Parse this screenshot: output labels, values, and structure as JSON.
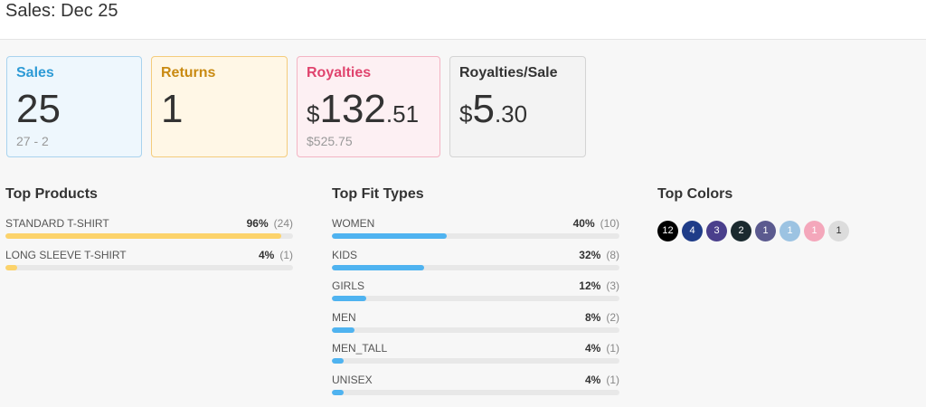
{
  "header": {
    "title": "Sales: Dec 25"
  },
  "cards": {
    "sales": {
      "label": "Sales",
      "value": "25",
      "sub": "27 - 2"
    },
    "returns": {
      "label": "Returns",
      "value": "1"
    },
    "royalties": {
      "label": "Royalties",
      "currency": "$",
      "whole": "132",
      "cents": ".51",
      "sub": "$525.75"
    },
    "royalties_per_sale": {
      "label": "Royalties/Sale",
      "currency": "$",
      "whole": "5",
      "cents": ".30"
    }
  },
  "top_products": {
    "title": "Top Products",
    "bar_color": "#fcd36b",
    "items": [
      {
        "name": "STANDARD T-SHIRT",
        "pct": "96%",
        "count": "(24)",
        "fraction": 0.96
      },
      {
        "name": "LONG SLEEVE T-SHIRT",
        "pct": "4%",
        "count": "(1)",
        "fraction": 0.04
      }
    ]
  },
  "top_fit_types": {
    "title": "Top Fit Types",
    "bar_color": "#4fb3f0",
    "items": [
      {
        "name": "WOMEN",
        "pct": "40%",
        "count": "(10)",
        "fraction": 0.4
      },
      {
        "name": "KIDS",
        "pct": "32%",
        "count": "(8)",
        "fraction": 0.32
      },
      {
        "name": "GIRLS",
        "pct": "12%",
        "count": "(3)",
        "fraction": 0.12
      },
      {
        "name": "MEN",
        "pct": "8%",
        "count": "(2)",
        "fraction": 0.08
      },
      {
        "name": "MEN_TALL",
        "pct": "4%",
        "count": "(1)",
        "fraction": 0.04
      },
      {
        "name": "UNISEX",
        "pct": "4%",
        "count": "(1)",
        "fraction": 0.04
      }
    ]
  },
  "top_colors": {
    "title": "Top Colors",
    "items": [
      {
        "count": "12",
        "color": "#000000",
        "text_color": "#ffffff"
      },
      {
        "count": "4",
        "color": "#1f3c88",
        "text_color": "#ffffff"
      },
      {
        "count": "3",
        "color": "#4a3f8c",
        "text_color": "#ffffff"
      },
      {
        "count": "2",
        "color": "#1b2a2f",
        "text_color": "#ffffff"
      },
      {
        "count": "1",
        "color": "#5b5a8f",
        "text_color": "#ffffff"
      },
      {
        "count": "1",
        "color": "#9cc3e2",
        "text_color": "#ffffff"
      },
      {
        "count": "1",
        "color": "#f4a7bb",
        "text_color": "#ffffff"
      },
      {
        "count": "1",
        "color": "#dcdcdc",
        "text_color": "#333333"
      }
    ]
  }
}
